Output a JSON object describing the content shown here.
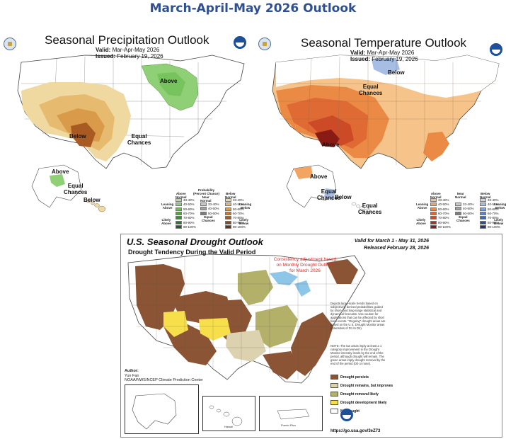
{
  "page_title": "March-April-May 2026 Outlook",
  "precip": {
    "title": "Seasonal Precipitation Outlook",
    "valid_label": "Valid:",
    "valid_value": "Mar-Apr-May 2026",
    "issued_label": "Issued:",
    "issued_value": "February 19, 2026",
    "labels": {
      "above_ne": "Above",
      "below": "Below",
      "equal_chances": "Equal\nChances",
      "above_ak": "Above",
      "equal_chances_ak": "Equal\nChances",
      "below_ak": "Below"
    },
    "legend": {
      "above_normal": "Above\nNormal",
      "probability": "Probability\n(Percent Chance)",
      "near_normal": "Near\nNormal",
      "below_normal": "Below\nNormal",
      "leaning_above": "Leaning\nAbove",
      "likely_above": "Likely\nAbove",
      "equal_chances": "Equal\nChances",
      "leaning_below": "Leaning\nBelow",
      "likely_below": "Likely\nBelow",
      "bins": [
        "33-40%",
        "40-50%",
        "50-60%",
        "60-70%",
        "70-80%",
        "80-90%",
        "90-100%"
      ],
      "above_colors": [
        "#b5df9c",
        "#8fcf76",
        "#6cbf55",
        "#4ea83b",
        "#3a9030",
        "#2a7826",
        "#1c5e1c"
      ],
      "near_colors": [
        "#c9c9c9",
        "#a3a3a3",
        "#7d7d7d"
      ],
      "below_colors": [
        "#f0d9a0",
        "#e6bb6f",
        "#d99b4a",
        "#c47a30",
        "#a85a22",
        "#8c4418",
        "#6b2f12"
      ]
    }
  },
  "temp": {
    "title": "Seasonal Temperature Outlook",
    "valid_label": "Valid:",
    "valid_value": "Mar-Apr-May 2026",
    "issued_label": "Issued:",
    "issued_value": "February 19, 2026",
    "labels": {
      "below_n": "Below",
      "equal_chances": "Equal\nChances",
      "above": "Above",
      "above_ak": "Above",
      "equal_chances_ak": "Equal\nChances",
      "below_ak": "Below",
      "equal_chances_ak2": "Equal\nChances"
    },
    "legend": {
      "above_normal": "Above\nNormal",
      "near_normal": "Near\nNormal",
      "below_normal": "Below\nNormal",
      "leaning_above": "Leaning\nAbove",
      "likely_above": "Likely\nAbove",
      "equal_chances": "Equal\nChances",
      "leaning_below": "Leaning\nBelow",
      "likely_below": "Likely\nBelow",
      "bins": [
        "33-40%",
        "40-50%",
        "50-60%",
        "60-70%",
        "70-80%",
        "80-90%",
        "90-100%"
      ],
      "above_colors": [
        "#f6c48a",
        "#f2a562",
        "#eb8a45",
        "#e06a33",
        "#cc4a26",
        "#b0301d",
        "#8a1a14"
      ],
      "near_colors": [
        "#c9c9c9",
        "#a3a3a3",
        "#7d7d7d"
      ],
      "below_colors": [
        "#c9d6ee",
        "#a6bde4",
        "#7ea0d6",
        "#5a84c6",
        "#3f69b0",
        "#2a4f96",
        "#1b387a"
      ]
    }
  },
  "drought": {
    "title": "U.S. Seasonal Drought Outlook",
    "subtitle": "Drought Tendency During the Valid Period",
    "valid": "Valid for March 1 - May 31, 2026",
    "released": "Released February 28, 2026",
    "consistency": "Consistency adjustment based on Monthly Drought Outlook for March 2026",
    "note1": "Depicts large-scale trends based on subjectively derived probabilities guided by short- and long-range statistical and dynamical forecasts. Use caution for applications that can be affected by short lived events. \"Ongoing\" drought areas are based on the U.S. Drought Monitor areas (intensities of D1 to D4).",
    "note2": "NOTE: The tan areas imply at least a 1 category improvement in the Drought Monitor intensity levels by the end of the period, although drought will remain. The green areas imply drought removal by the end of the period (D0 or none).",
    "legend": [
      {
        "label": "Drought persists",
        "color": "#8b5434"
      },
      {
        "label": "Drought remains, but improves",
        "color": "#ddd2b0"
      },
      {
        "label": "Drought removal likely",
        "color": "#b3b06a"
      },
      {
        "label": "Drought development likely",
        "color": "#f7df4b"
      },
      {
        "label": "No drought",
        "color": "#ffffff"
      }
    ],
    "author_label": "Author:",
    "author": "Yun Fan",
    "org": "NOAA/NWS/NCEP Climate Prediction Center",
    "url": "https://go.usa.gov/3eZ73",
    "inset_hawaii": "Hawaii",
    "inset_pr": "Puerto Rico"
  }
}
